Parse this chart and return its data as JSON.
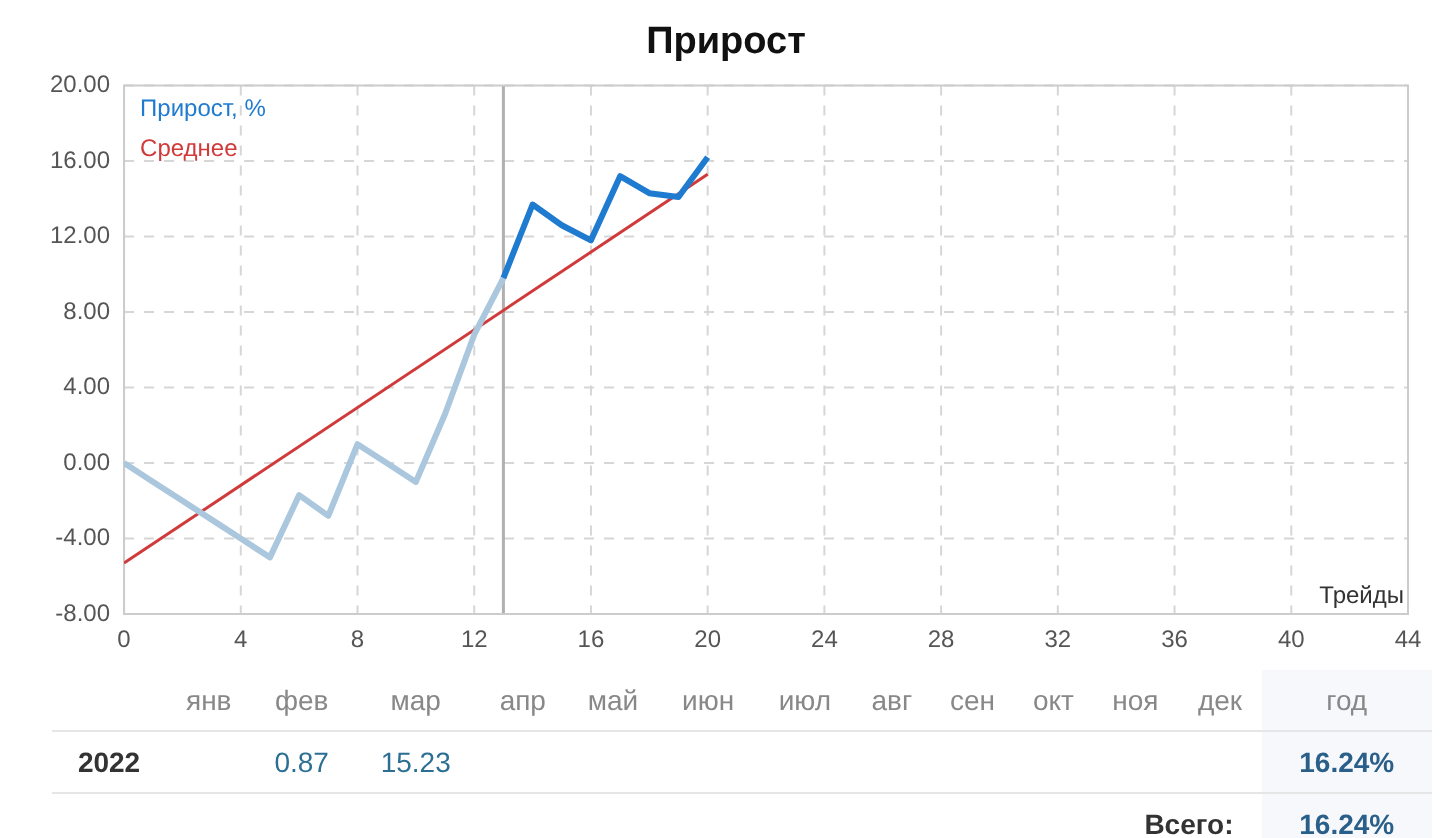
{
  "chart_data": {
    "type": "line",
    "title": "Прирост",
    "xlabel": "Трейды",
    "xlim": [
      0,
      44
    ],
    "xticks": [
      0,
      4,
      8,
      12,
      16,
      20,
      24,
      28,
      32,
      36,
      40,
      44
    ],
    "ylim": [
      -8,
      20
    ],
    "yticks": [
      {
        "value": -8,
        "label": "-8.00"
      },
      {
        "value": -4,
        "label": "-4.00"
      },
      {
        "value": 0,
        "label": "0.00"
      },
      {
        "value": 4,
        "label": "4.00"
      },
      {
        "value": 8,
        "label": "8.00"
      },
      {
        "value": 12,
        "label": "12.00"
      },
      {
        "value": 16,
        "label": "16.00"
      },
      {
        "value": 20,
        "label": "20.00"
      }
    ],
    "grid": true,
    "legend": "top left",
    "marker": "none",
    "series": [
      {
        "color": "#aac7de",
        "x": [
          0,
          1,
          2,
          3,
          4,
          5,
          6,
          7,
          8,
          9,
          10,
          11,
          12,
          13
        ],
        "values": [
          0,
          -1,
          -2,
          -3,
          -4,
          -5,
          -1.7,
          -2.8,
          1,
          0,
          -1,
          2.6,
          6.8,
          9.8
        ]
      },
      {
        "name": "Прирост, %",
        "color": "#1f7bd0",
        "x": [
          13,
          14,
          15,
          16,
          17,
          18,
          19,
          20
        ],
        "values": [
          9.8,
          13.7,
          12.6,
          11.8,
          15.2,
          14.3,
          14.1,
          16.2
        ]
      },
      {
        "name": "Среднее",
        "color": "#d03a3a",
        "x": [
          0,
          20
        ],
        "values": [
          -5.3,
          15.3
        ]
      }
    ],
    "ref_lines": [
      {
        "axis": "x",
        "value": 13,
        "color": "#b0b0b0"
      }
    ],
    "annotations": [
      "янв",
      "фев",
      "мар",
      "апр",
      "май",
      "июн",
      "июл",
      "авг",
      "сен",
      "окт",
      "ноя",
      "дек",
      "год",
      "2022",
      "0.87",
      "15.23",
      "16.24%",
      "Всего:",
      "16.24%"
    ]
  }
}
